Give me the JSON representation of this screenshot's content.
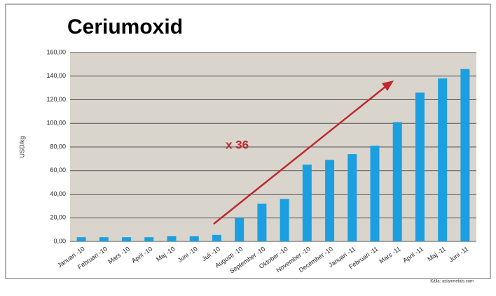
{
  "chart_data": {
    "type": "bar",
    "title": "Ceriumoxid",
    "y_label": "USD/kg",
    "annotation": "x 36",
    "source": "Källa: asianmetals.com",
    "categories": [
      "Januari -10",
      "Februari -10",
      "Mars -10",
      "April -10",
      "Maj -10",
      "Juni -10",
      "Juli -10",
      "Augusti -10",
      "September -10",
      "Oktober -10",
      "November -10",
      "December -10",
      "Januari -11",
      "Februari -11",
      "Mars -11",
      "April -11",
      "Maj -11",
      "Juni -11"
    ],
    "values": [
      3.5,
      3.5,
      3.5,
      3.5,
      4.5,
      4.5,
      5.5,
      20,
      32,
      36,
      65,
      69,
      74,
      81,
      101,
      126,
      138,
      146
    ],
    "color": "#1b9fe0",
    "ylim": [
      0,
      160
    ],
    "yticks": [
      {
        "value": 0,
        "label": "0,00"
      },
      {
        "value": 20,
        "label": "20,00"
      },
      {
        "value": 40,
        "label": "40,00"
      },
      {
        "value": 60,
        "label": "60,00"
      },
      {
        "value": 80,
        "label": "80,00"
      },
      {
        "value": 100,
        "label": "100,00"
      },
      {
        "value": 120,
        "label": "120,00"
      },
      {
        "value": 140,
        "label": "140,00"
      },
      {
        "value": 160,
        "label": "160,00"
      }
    ],
    "grid": true
  }
}
